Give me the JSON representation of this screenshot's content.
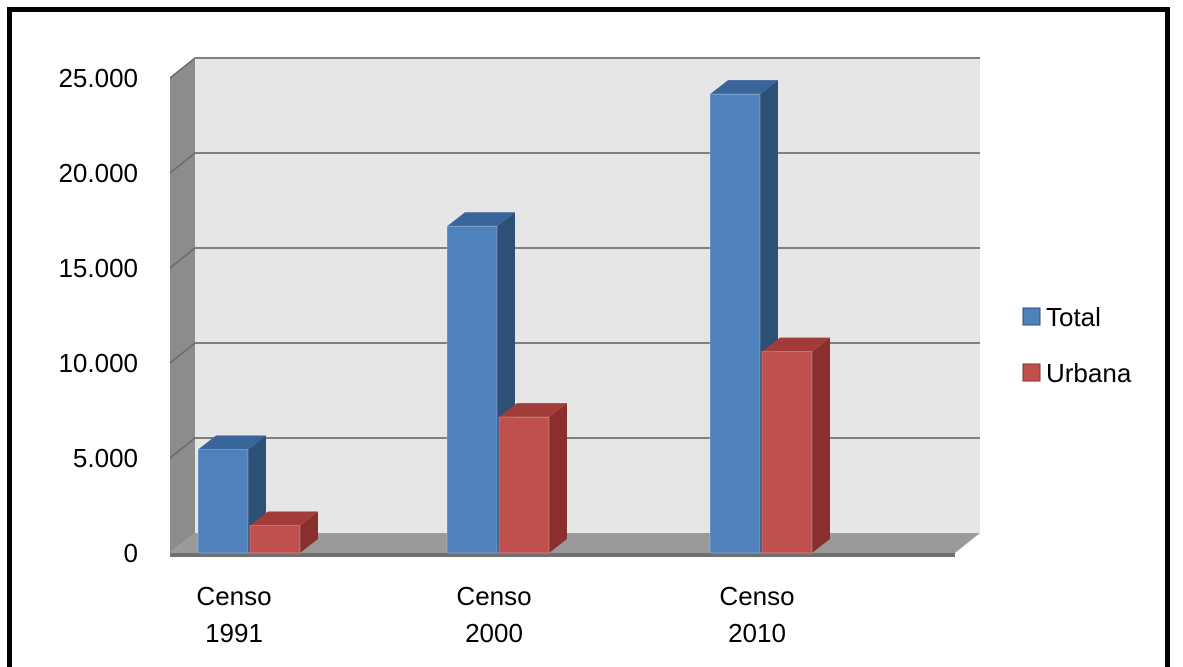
{
  "chart_data": {
    "type": "bar",
    "categories": [
      [
        "Censo",
        "1991"
      ],
      [
        "Censo",
        "2000"
      ],
      [
        "Censo",
        "2010"
      ]
    ],
    "series": [
      {
        "name": "Total",
        "values": [
          5450,
          17200,
          24150
        ],
        "color": "#4f81bd",
        "side": "#2e4f76",
        "top": "#3a659a"
      },
      {
        "name": "Urbana",
        "values": [
          1450,
          7150,
          10600
        ],
        "color": "#c0504d",
        "side": "#8a2f2d",
        "top": "#a13c39"
      }
    ],
    "ylim": [
      0,
      25000
    ],
    "yticks": [
      0,
      5000,
      10000,
      15000,
      20000,
      25000
    ],
    "ytick_labels": [
      "0",
      "5.000",
      "10.000",
      "15.000",
      "20.000",
      "25.000"
    ],
    "legend_position": "right",
    "grid": true,
    "three_d": true,
    "wall_color": "#e6e6e6",
    "gridline_color": "#808080"
  }
}
